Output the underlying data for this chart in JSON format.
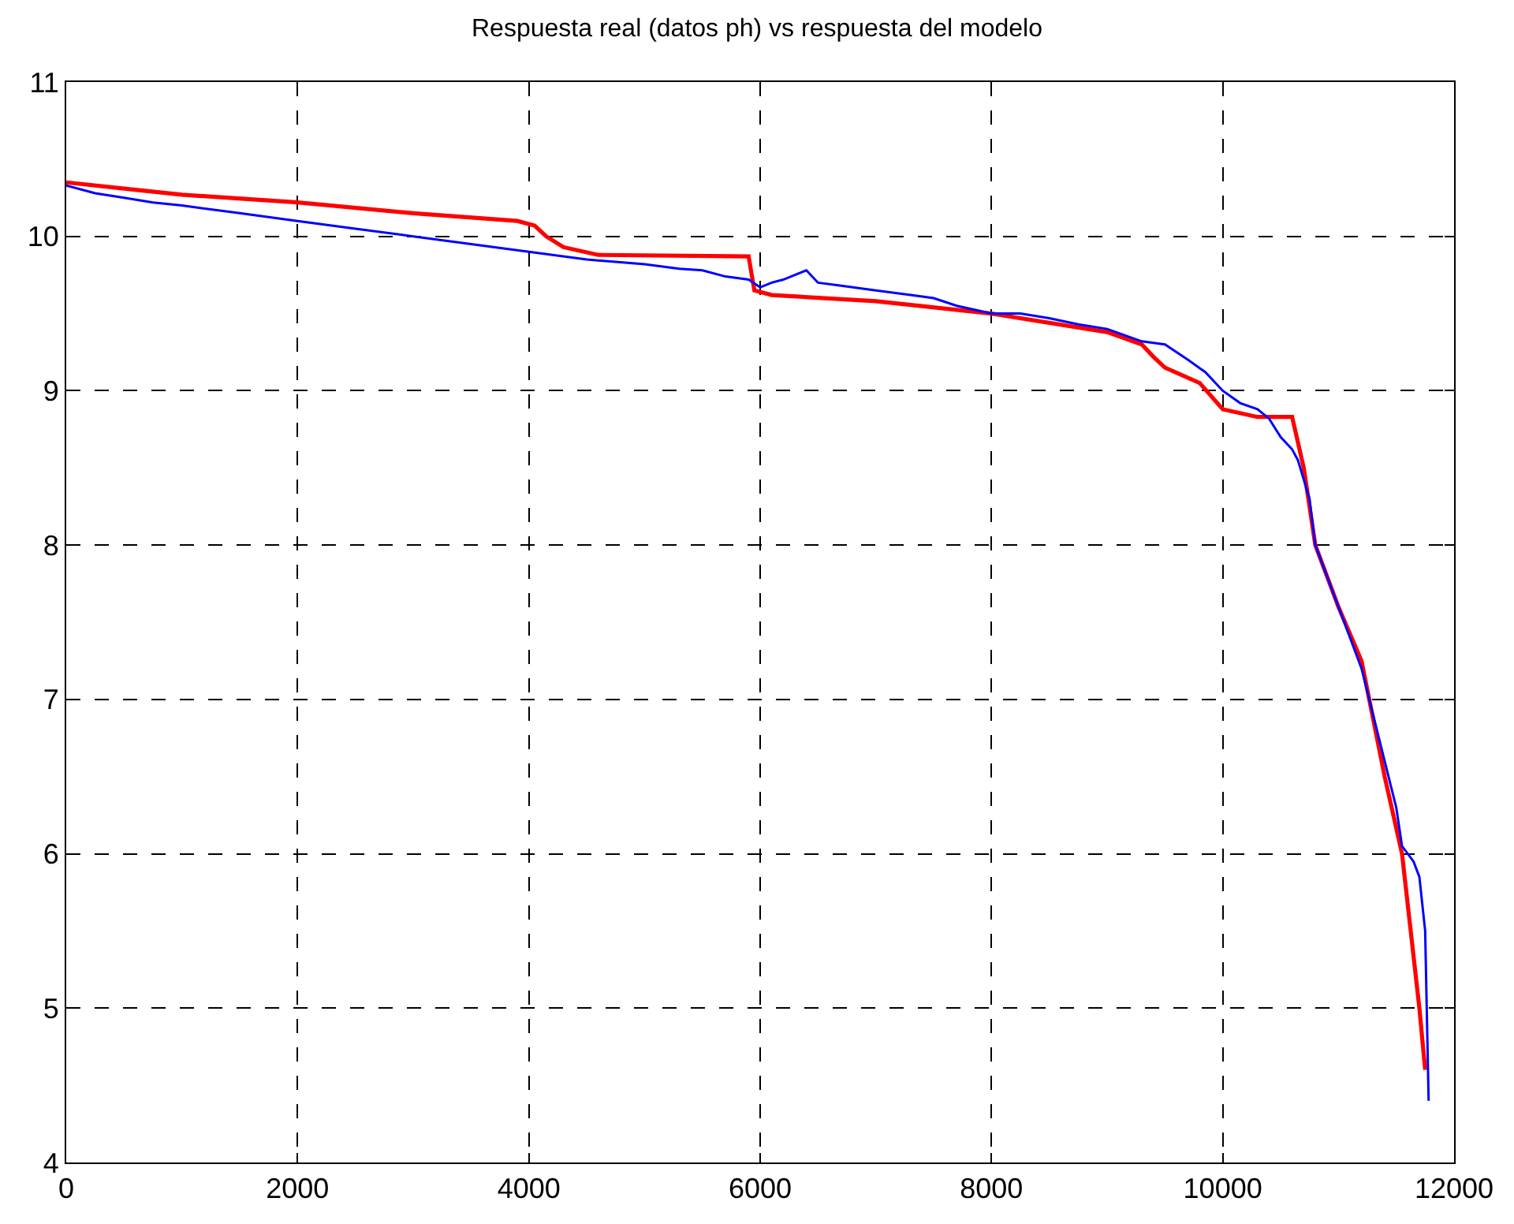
{
  "chart_data": {
    "type": "line",
    "title": "Respuesta real (datos ph) vs respuesta del modelo",
    "xlim": [
      0,
      12000
    ],
    "xticks": [
      0,
      2000,
      4000,
      6000,
      8000,
      10000,
      12000
    ],
    "ylim": [
      4,
      11
    ],
    "yticks": [
      4,
      5,
      6,
      7,
      8,
      9,
      10,
      11
    ],
    "grid": true,
    "legend": false,
    "series": [
      {
        "color": "#ff0000",
        "x": [
          0,
          500,
          1000,
          2000,
          3000,
          3900,
          4050,
          4150,
          4300,
          4600,
          5900,
          5950,
          6100,
          7000,
          8000,
          9000,
          9300,
          9400,
          9500,
          9800,
          10000,
          10300,
          10600,
          10700,
          10800,
          11000,
          11200,
          11400,
          11550,
          11700,
          11750
        ],
        "values": [
          10.35,
          10.31,
          10.27,
          10.22,
          10.15,
          10.1,
          10.07,
          10.0,
          9.93,
          9.88,
          9.87,
          9.65,
          9.62,
          9.58,
          9.5,
          9.38,
          9.3,
          9.22,
          9.15,
          9.05,
          8.88,
          8.83,
          8.83,
          8.5,
          8.0,
          7.6,
          7.25,
          6.5,
          6.0,
          5.0,
          4.6
        ]
      },
      {
        "color": "#0000ff",
        "x": [
          0,
          250,
          500,
          750,
          1000,
          1500,
          2000,
          2500,
          3000,
          3500,
          4000,
          4500,
          5000,
          5300,
          5500,
          5700,
          5900,
          6000,
          6100,
          6200,
          6300,
          6400,
          6500,
          6700,
          7000,
          7300,
          7500,
          7700,
          8000,
          8250,
          8500,
          8750,
          9000,
          9300,
          9500,
          9600,
          9700,
          9850,
          10000,
          10150,
          10300,
          10400,
          10500,
          10600,
          10650,
          10750,
          10800,
          10900,
          11000,
          11100,
          11200,
          11300,
          11400,
          11500,
          11550,
          11650,
          11700,
          11750,
          11780
        ],
        "values": [
          10.33,
          10.28,
          10.25,
          10.22,
          10.2,
          10.15,
          10.1,
          10.05,
          10.0,
          9.95,
          9.9,
          9.85,
          9.82,
          9.79,
          9.78,
          9.74,
          9.72,
          9.67,
          9.7,
          9.72,
          9.75,
          9.78,
          9.7,
          9.68,
          9.65,
          9.62,
          9.6,
          9.55,
          9.5,
          9.5,
          9.47,
          9.43,
          9.4,
          9.32,
          9.3,
          9.25,
          9.2,
          9.12,
          9.0,
          8.92,
          8.88,
          8.82,
          8.7,
          8.62,
          8.55,
          8.3,
          8.0,
          7.8,
          7.6,
          7.4,
          7.2,
          6.9,
          6.6,
          6.3,
          6.05,
          5.95,
          5.85,
          5.5,
          4.4
        ]
      }
    ]
  }
}
